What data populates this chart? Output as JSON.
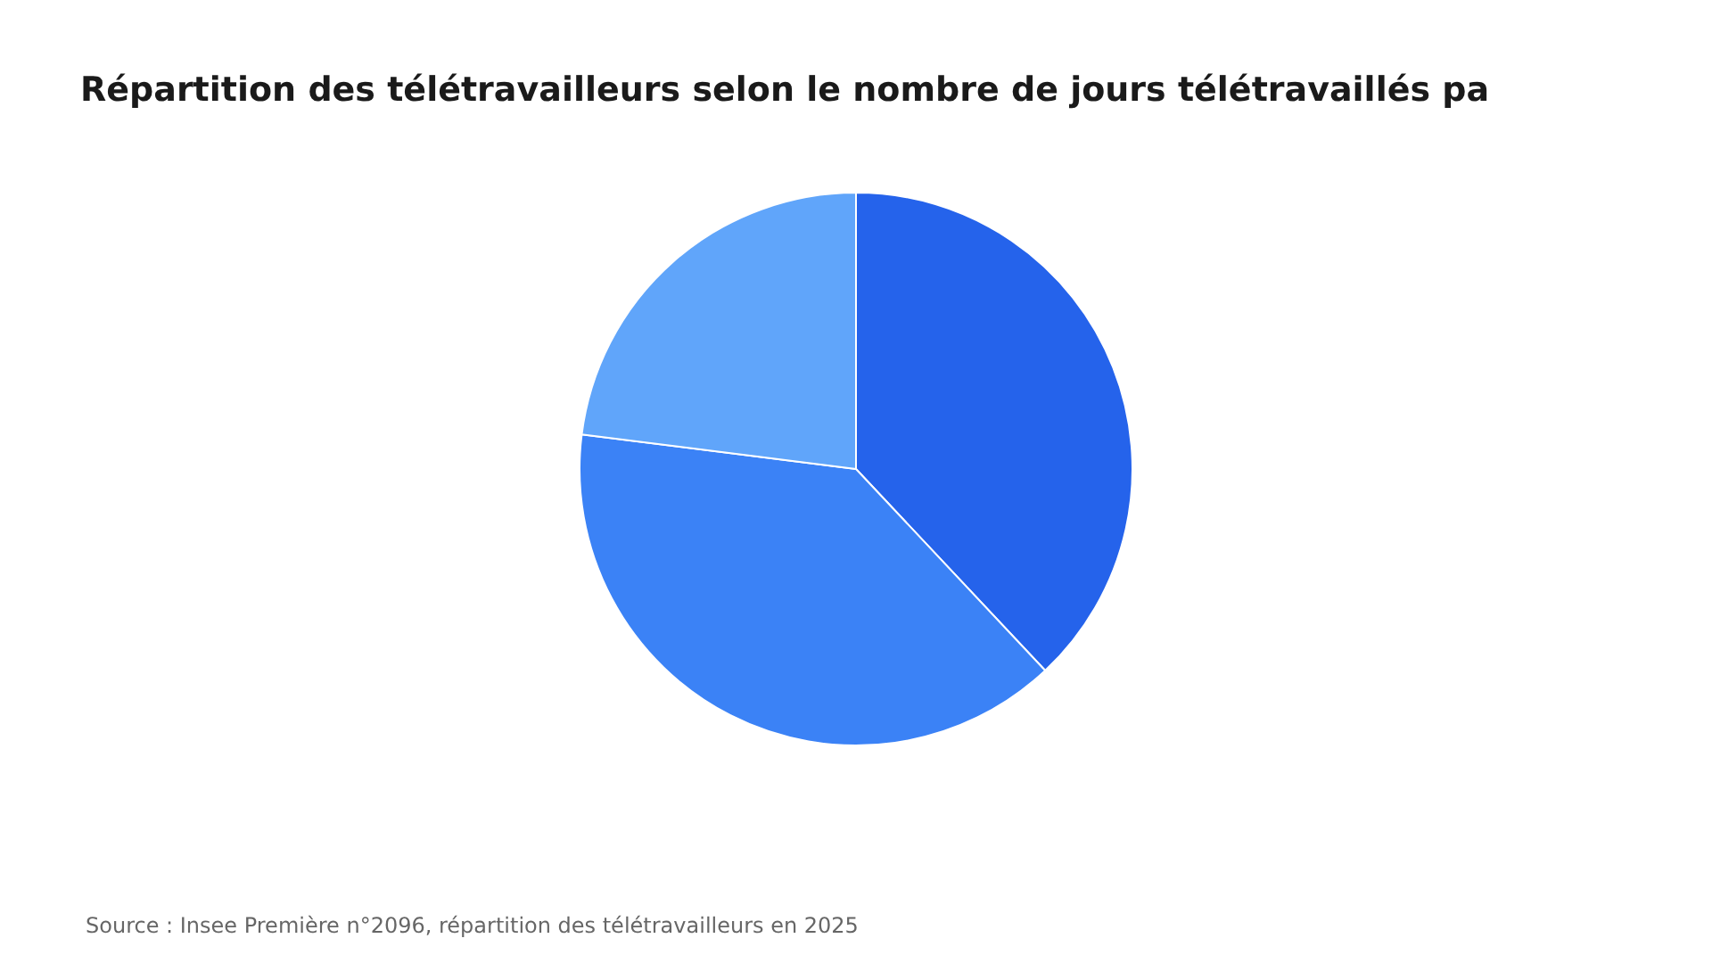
{
  "chart_data": {
    "type": "pie",
    "title": "Répartition des télétravailleurs selon le nombre de jours télétravaillés pa",
    "categories": [
      null,
      null,
      null
    ],
    "values": [
      38,
      39,
      23
    ],
    "colors": [
      "#2563eb",
      "#3b82f6",
      "#60a5fa"
    ],
    "annotations": [
      "Source : Insee Première n°2096, répartition des télétravailleurs en 2025"
    ]
  }
}
